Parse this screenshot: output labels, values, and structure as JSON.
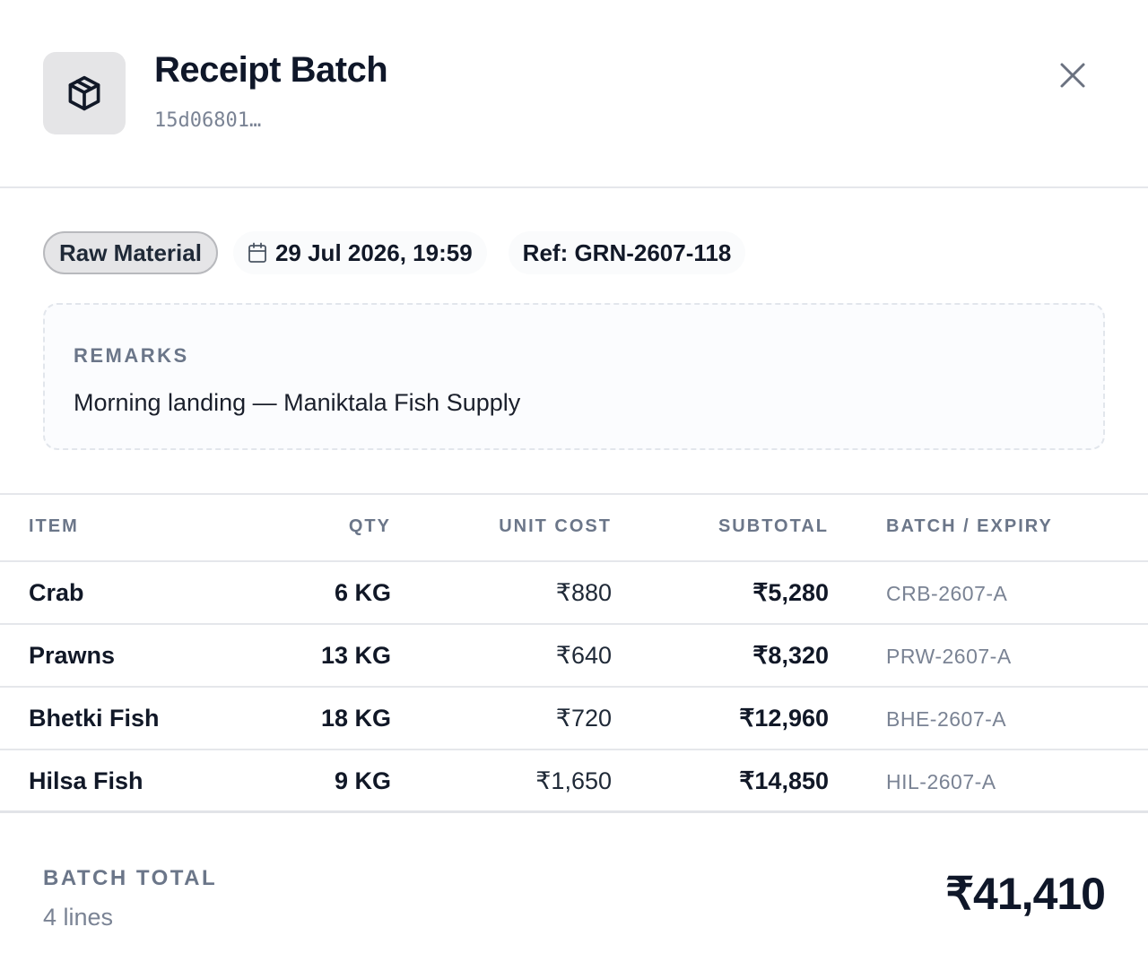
{
  "header": {
    "title": "Receipt Batch",
    "batch_id": "15d06801…",
    "icon": "package-icon"
  },
  "meta": {
    "category": "Raw Material",
    "date": "29 Jul 2026, 19:59",
    "reference": "Ref: GRN-2607-118"
  },
  "remarks": {
    "label": "REMARKS",
    "text": "Morning landing — Maniktala Fish Supply"
  },
  "table": {
    "headers": {
      "item": "ITEM",
      "qty": "QTY",
      "unit_cost": "UNIT COST",
      "subtotal": "SUBTOTAL",
      "batch": "BATCH / EXPIRY"
    },
    "rows": [
      {
        "item": "Crab",
        "qty": "6 KG",
        "unit_cost": "₹880",
        "subtotal": "₹5,280",
        "batch": "CRB-2607-A"
      },
      {
        "item": "Prawns",
        "qty": "13 KG",
        "unit_cost": "₹640",
        "subtotal": "₹8,320",
        "batch": "PRW-2607-A"
      },
      {
        "item": "Bhetki Fish",
        "qty": "18 KG",
        "unit_cost": "₹720",
        "subtotal": "₹12,960",
        "batch": "BHE-2607-A"
      },
      {
        "item": "Hilsa Fish",
        "qty": "9 KG",
        "unit_cost": "₹1,650",
        "subtotal": "₹14,850",
        "batch": "HIL-2607-A"
      }
    ]
  },
  "footer": {
    "label": "BATCH TOTAL",
    "lines": "4 lines",
    "total": "₹41,410"
  }
}
